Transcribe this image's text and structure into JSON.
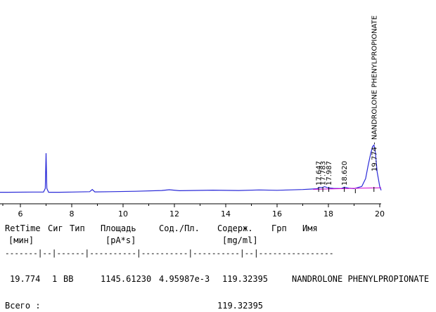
{
  "chart_data": {
    "type": "line",
    "title": "",
    "xlabel": "",
    "ylabel": "",
    "xlim": [
      4.5,
      20.2
    ],
    "ylim": [
      0,
      100
    ],
    "x_ticks": [
      "6",
      "8",
      "10",
      "12",
      "14",
      "16",
      "18",
      "20"
    ],
    "series": [
      {
        "color": "#2a2ad8",
        "x": [
          4.5,
          5.5,
          6.5,
          6.9,
          6.97,
          7.0,
          7.03,
          7.1,
          7.5,
          8.0,
          8.7,
          8.8,
          8.9,
          9.5,
          10.5,
          11.5,
          11.8,
          12.2,
          13.5,
          14.5,
          15.3,
          16.0,
          17.0,
          17.55,
          17.65,
          17.75,
          17.85,
          17.99,
          18.2,
          18.5,
          18.62,
          18.8,
          19.0,
          19.3,
          19.45,
          19.55,
          19.65,
          19.72,
          19.774,
          19.83,
          19.9,
          20.0,
          20.2
        ],
        "y": [
          0.5,
          0.5,
          0.6,
          0.6,
          2.5,
          20.6,
          2.5,
          0.5,
          0.5,
          0.6,
          0.8,
          1.9,
          0.7,
          0.8,
          1.0,
          1.4,
          1.8,
          1.3,
          1.6,
          1.4,
          1.7,
          1.5,
          1.9,
          2.3,
          3.0,
          2.9,
          3.4,
          2.8,
          2.5,
          2.4,
          3.1,
          2.6,
          2.4,
          3.5,
          7.5,
          14.5,
          20.5,
          24.0,
          24.8,
          21.0,
          11.0,
          3.5,
          1.5
        ]
      },
      {
        "color": "#d000d0",
        "x": [
          17.4,
          18.0,
          18.6,
          19.3,
          20.2
        ],
        "y": [
          2.0,
          2.2,
          2.4,
          2.6,
          2.8
        ]
      }
    ],
    "peak_labels": [
      {
        "x": 17.647,
        "text": "17.647"
      },
      {
        "x": 17.783,
        "text": "17.783"
      },
      {
        "x": 17.987,
        "text": "17.987"
      },
      {
        "x": 18.62,
        "text": "18.620"
      },
      {
        "x": 19.774,
        "text": "19.774 - NANDROLONE PHENYLPROPIONATE"
      }
    ]
  },
  "report": {
    "headers1": [
      "RetTime",
      "Сиг",
      "Тип",
      "Площадь",
      "Сод./Пл.",
      "Содерж.",
      "Грп",
      "Имя"
    ],
    "headers2": [
      "[мин]",
      "[pA*s]",
      "[mg/ml]"
    ],
    "separator": "-------|--|------|----------|----------|----------|--|----------------",
    "row": {
      "ret_time": "19.774",
      "sig": "1",
      "type": "BB",
      "area": "1145.61230",
      "amt_area": "4.95987e-3",
      "amount": "119.32395",
      "name": "NANDROLONE PHENYLPROPIONATE"
    },
    "total_label": "Всего :",
    "total_value": "119.32395"
  }
}
